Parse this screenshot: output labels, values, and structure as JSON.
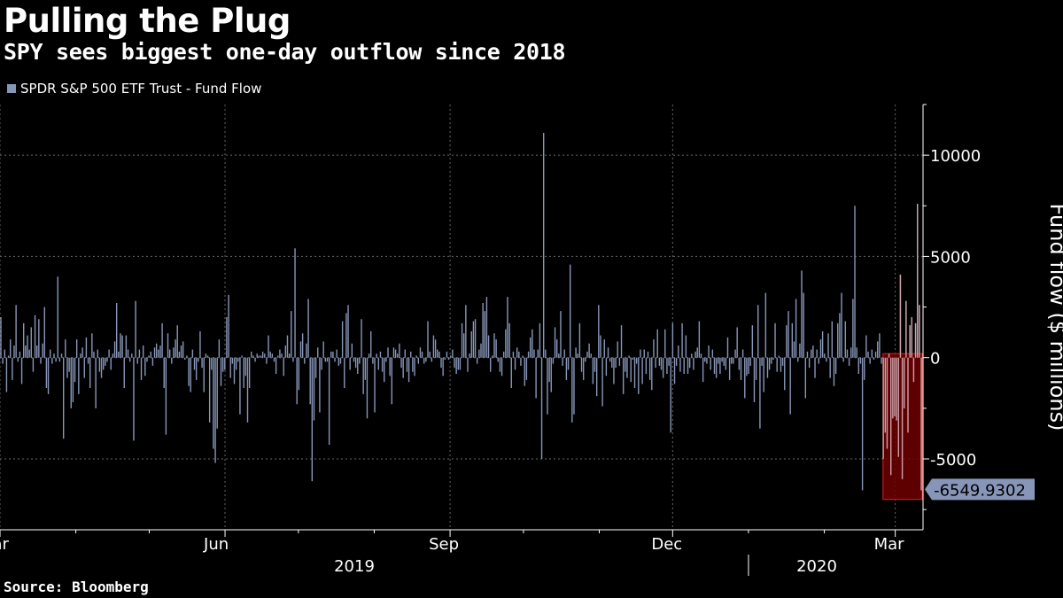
{
  "title": "Pulling the Plug",
  "subtitle": "SPY sees biggest one-day outflow since 2018",
  "source": "Source: Bloomberg",
  "colors": {
    "bar": "#8796b8",
    "highlight_fill": "#6e0000",
    "highlight_stroke": "#e02020",
    "grid": "#666666",
    "background": "#000000"
  },
  "chart_data": {
    "type": "bar",
    "legend": "SPDR S&P 500 ETF Trust - Fund Flow",
    "ylabel": "Fund flow ($ millions)",
    "xlabel": "",
    "ylim": [
      -8500,
      12500
    ],
    "yticks": [
      10000,
      5000,
      0,
      -5000
    ],
    "ytick_labels": [
      "10000",
      "5000",
      "0",
      "-5000"
    ],
    "x_range": [
      "2019-03-01",
      "2020-03-12"
    ],
    "month_labels": [
      {
        "label": "Mar",
        "date": "2019-03-01"
      },
      {
        "label": "Jun",
        "date": "2019-06-01"
      },
      {
        "label": "Sep",
        "date": "2019-09-01"
      },
      {
        "label": "Dec",
        "date": "2019-12-01"
      },
      {
        "label": "Mar",
        "date": "2020-03-01"
      }
    ],
    "minor_ticks": [
      "2019-04-01",
      "2019-05-01",
      "2019-07-01",
      "2019-08-01",
      "2019-10-01",
      "2019-11-01",
      "2020-01-01",
      "2020-02-01"
    ],
    "year_labels": [
      "2019",
      "2020"
    ],
    "last_value_label": "-6549.9302",
    "highlight": {
      "x_from": "2020-02-25",
      "x_to": "2020-03-12",
      "y_from": 200,
      "y_to": -7000
    },
    "values": [
      2000,
      -300,
      400,
      -1700,
      100,
      900,
      -1100,
      600,
      2600,
      -200,
      300,
      -1300,
      1700,
      600,
      1100,
      400,
      1500,
      -700,
      2100,
      600,
      1900,
      -300,
      700,
      2500,
      -1500,
      -1800,
      400,
      -300,
      200,
      -200,
      4000,
      -200,
      200,
      -4000,
      900,
      -1000,
      -700,
      -2500,
      -2200,
      -1200,
      900,
      -1800,
      200,
      500,
      -1000,
      1000,
      -300,
      -1500,
      1200,
      300,
      -2500,
      400,
      -700,
      -1000,
      -600,
      -400,
      -200,
      400,
      -600,
      200,
      800,
      2700,
      300,
      1200,
      1100,
      -1500,
      1100,
      400,
      -200,
      200,
      -4100,
      2800,
      -300,
      400,
      -1100,
      600,
      -900,
      -200,
      100,
      300,
      -400,
      500,
      700,
      400,
      600,
      1700,
      -1500,
      -3800,
      1200,
      400,
      -300,
      500,
      900,
      1600,
      300,
      600,
      800,
      -100,
      100,
      -1400,
      -1700,
      400,
      -600,
      -1100,
      -200,
      1300,
      -500,
      -1700,
      200,
      100,
      -3200,
      -600,
      -4500,
      -5200,
      -3500,
      900,
      -1400,
      -700,
      -600,
      2000,
      3100,
      -1000,
      -300,
      -1300,
      -600,
      -200,
      -2800,
      100,
      -1500,
      -900,
      -3200,
      -1500,
      300,
      100,
      -200,
      200,
      100,
      100,
      300,
      200,
      -300,
      1100,
      300,
      200,
      -200,
      -800,
      100,
      400,
      200,
      -900,
      600,
      1100,
      200,
      2300,
      -200,
      5400,
      -2300,
      -1600,
      800,
      1200,
      -300,
      700,
      2900,
      -2300,
      -6100,
      -3100,
      -1000,
      500,
      -2700,
      -600,
      800,
      -200,
      -200,
      -4300,
      300,
      300,
      -200,
      400,
      -400,
      -300,
      1800,
      -1500,
      2200,
      2600,
      -600,
      700,
      -200,
      -500,
      -800,
      -300,
      1900,
      -1800,
      -1100,
      -3000,
      200,
      1300,
      -300,
      -2700,
      200,
      -600,
      300,
      -700,
      -1200,
      -200,
      500,
      -900,
      -2300,
      500,
      400,
      200,
      700,
      -500,
      -1000,
      400,
      -700,
      -1200,
      300,
      -700,
      -900,
      100,
      -300,
      500,
      300,
      -300,
      -200,
      1800,
      300,
      -200,
      1100,
      900,
      400,
      300,
      -500,
      -900,
      -100,
      300,
      -100,
      100,
      400,
      -500,
      -800,
      -600,
      -600,
      1700,
      1200,
      2600,
      -700,
      200,
      1300,
      1800,
      1900,
      -300,
      400,
      700,
      2700,
      2300,
      3000,
      1100,
      -700,
      100,
      1200,
      900,
      -200,
      -700,
      -900,
      300,
      1400,
      3000,
      1700,
      -1500,
      300,
      -600,
      500,
      300,
      -400,
      100,
      -1400,
      -1100,
      300,
      1000,
      1400,
      400,
      -2000,
      400,
      1700,
      -5000,
      11100,
      400,
      -2800,
      -1200,
      -1700,
      -300,
      1500,
      900,
      200,
      2300,
      -400,
      400,
      -1100,
      -600,
      4600,
      -3200,
      -2800,
      500,
      200,
      1700,
      -700,
      -1100,
      -200,
      300,
      700,
      200,
      -1300,
      -700,
      -1900,
      2600,
      1100,
      -2400,
      900,
      -900,
      500,
      -200,
      -500,
      -1300,
      -500,
      800,
      -400,
      1600,
      -1800,
      -700,
      -1000,
      100,
      -1200,
      -100,
      -1500,
      -300,
      -1800,
      400,
      -1300,
      400,
      -800,
      300,
      -1100,
      -1600,
      900,
      -500,
      1400,
      -400,
      -600,
      -1000,
      1400,
      -800,
      -400,
      -3700,
      1700,
      -1300,
      -400,
      600,
      -700,
      1700,
      -800,
      1100,
      -800,
      -500,
      200,
      -600,
      300,
      500,
      1800,
      200,
      -1200,
      -200,
      -300,
      600,
      -600,
      400,
      -800,
      -1000,
      -300,
      -800,
      -200,
      -400,
      -600,
      1000,
      -1100,
      -300,
      -300,
      400,
      1500,
      -600,
      -1100,
      400,
      -2000,
      -900,
      -800,
      -400,
      1600,
      -2200,
      -1100,
      2600,
      -3500,
      -400,
      -1700,
      3200,
      -1000,
      -600,
      -300,
      -100,
      1700,
      -700,
      100,
      -700,
      -400,
      -1600,
      1600,
      2300,
      -2800,
      1700,
      800,
      2900,
      -200,
      700,
      4300,
      3200,
      -2000,
      300,
      -500,
      400,
      600,
      -1000,
      400,
      -300,
      900,
      1300,
      200,
      -200,
      1200,
      -1000,
      1800,
      -1400,
      -800,
      1700,
      2200,
      3200,
      -200,
      1800,
      400,
      -400,
      500,
      2900,
      7500,
      500,
      -800,
      -300,
      -6550,
      -1100,
      1100,
      300,
      -300,
      400,
      -100,
      300,
      800,
      1200,
      -300,
      -5000,
      -3700,
      -4500,
      200,
      -5800,
      -3000,
      -2900,
      -3100,
      -4900,
      4100,
      -6000,
      -2500,
      2800,
      -3700,
      1600,
      2000,
      -1200,
      1700,
      7600,
      2600,
      -6550
    ]
  }
}
